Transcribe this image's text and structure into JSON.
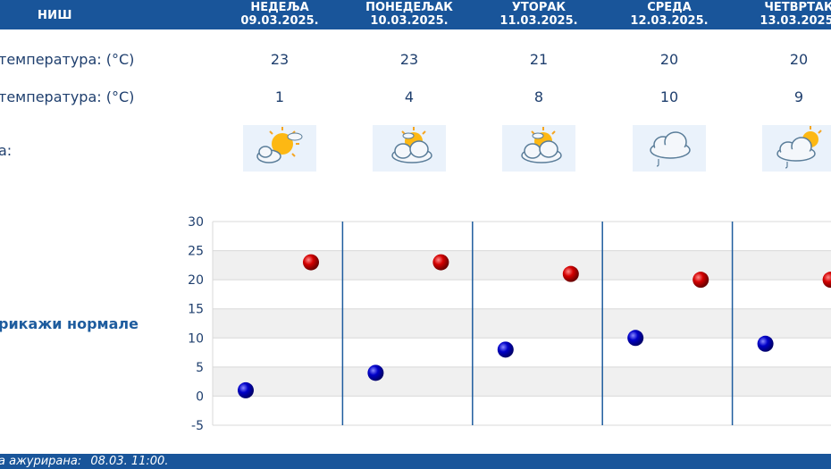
{
  "header": {
    "city": "НИШ"
  },
  "days": [
    {
      "name": "НЕДЕЉА",
      "date": "09.03.2025.",
      "max": "23",
      "min": "1",
      "icon": "sun-cloud-icon"
    },
    {
      "name": "ПОНЕДЕЉАК",
      "date": "10.03.2025.",
      "max": "23",
      "min": "4",
      "icon": "cloud-sun-icon"
    },
    {
      "name": "УТОРАК",
      "date": "11.03.2025.",
      "max": "21",
      "min": "8",
      "icon": "cloud-sun-icon"
    },
    {
      "name": "СРЕДА",
      "date": "12.03.2025.",
      "max": "20",
      "min": "10",
      "icon": "cloud-rain-icon"
    },
    {
      "name": "ЧЕТВРТАК",
      "date": "13.03.2025.",
      "max": "20",
      "min": "9",
      "icon": "cloud-sun-rain-icon"
    }
  ],
  "rows": {
    "max_label": "температура: (°C)",
    "min_label": "температура: (°C)",
    "weather_label": "а:"
  },
  "show_normals": "рикажи нормале",
  "footer": {
    "label": "а ажурирана:",
    "value": "08.03. 11:00."
  },
  "colors": {
    "brand": "#19559a",
    "max_marker": "#cc0000",
    "min_marker": "#0000b4",
    "divider": "#1e5c9e"
  },
  "chart_data": {
    "type": "scatter",
    "categories": [
      "09.03.2025.",
      "10.03.2025.",
      "11.03.2025.",
      "12.03.2025.",
      "13.03.2025."
    ],
    "series": [
      {
        "values": [
          23,
          23,
          21,
          20,
          20
        ],
        "color": "#cc0000"
      },
      {
        "values": [
          1,
          4,
          8,
          10,
          9
        ],
        "color": "#0000b4"
      }
    ],
    "yticks": [
      "30",
      "25",
      "20",
      "15",
      "10",
      "5",
      "0",
      "-5"
    ],
    "ylim": [
      -5,
      30
    ],
    "grid": true
  }
}
